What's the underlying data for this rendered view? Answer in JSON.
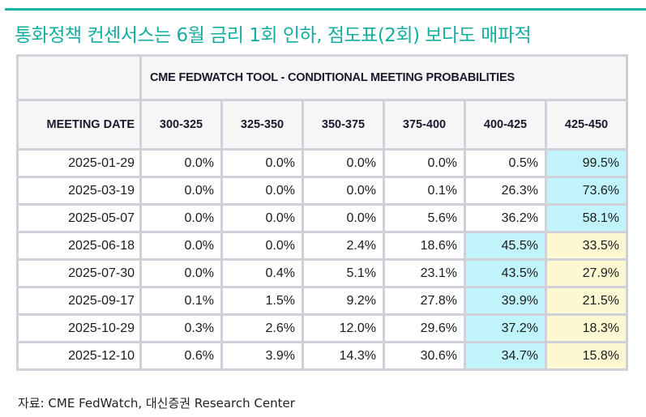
{
  "title": "통화정책 컨센서스는 6월 금리 1회 인하, 점도표(2회) 보다도 매파적",
  "table": {
    "super_header": "CME FEDWATCH TOOL - CONDITIONAL MEETING PROBABILITIES",
    "date_header": "MEETING DATE",
    "columns": [
      "300-325",
      "325-350",
      "350-375",
      "375-400",
      "400-425",
      "425-450"
    ],
    "rows": [
      {
        "date": "2025-01-29",
        "values": [
          "0.0%",
          "0.0%",
          "0.0%",
          "0.0%",
          "0.5%",
          "99.5%"
        ],
        "highlight": [
          "",
          "",
          "",
          "",
          "",
          "cyan"
        ]
      },
      {
        "date": "2025-03-19",
        "values": [
          "0.0%",
          "0.0%",
          "0.0%",
          "0.1%",
          "26.3%",
          "73.6%"
        ],
        "highlight": [
          "",
          "",
          "",
          "",
          "",
          "cyan"
        ]
      },
      {
        "date": "2025-05-07",
        "values": [
          "0.0%",
          "0.0%",
          "0.0%",
          "5.6%",
          "36.2%",
          "58.1%"
        ],
        "highlight": [
          "",
          "",
          "",
          "",
          "",
          "cyan"
        ]
      },
      {
        "date": "2025-06-18",
        "values": [
          "0.0%",
          "0.0%",
          "2.4%",
          "18.6%",
          "45.5%",
          "33.5%"
        ],
        "highlight": [
          "",
          "",
          "",
          "",
          "cyan",
          "yellow"
        ]
      },
      {
        "date": "2025-07-30",
        "values": [
          "0.0%",
          "0.4%",
          "5.1%",
          "23.1%",
          "43.5%",
          "27.9%"
        ],
        "highlight": [
          "",
          "",
          "",
          "",
          "cyan",
          "yellow"
        ]
      },
      {
        "date": "2025-09-17",
        "values": [
          "0.1%",
          "1.5%",
          "9.2%",
          "27.8%",
          "39.9%",
          "21.5%"
        ],
        "highlight": [
          "",
          "",
          "",
          "",
          "cyan",
          "yellow"
        ]
      },
      {
        "date": "2025-10-29",
        "values": [
          "0.3%",
          "2.6%",
          "12.0%",
          "29.6%",
          "37.2%",
          "18.3%"
        ],
        "highlight": [
          "",
          "",
          "",
          "",
          "cyan",
          "yellow"
        ]
      },
      {
        "date": "2025-12-10",
        "values": [
          "0.6%",
          "3.9%",
          "14.3%",
          "30.6%",
          "34.7%",
          "15.8%"
        ],
        "highlight": [
          "",
          "",
          "",
          "",
          "cyan",
          "yellow"
        ]
      }
    ]
  },
  "colors": {
    "accent": "#14ad9f",
    "highlight_cyan": "#c0f4fa",
    "highlight_yellow": "#fbf8d2"
  },
  "source": "자료: CME FedWatch, 대신증권 Research Center"
}
